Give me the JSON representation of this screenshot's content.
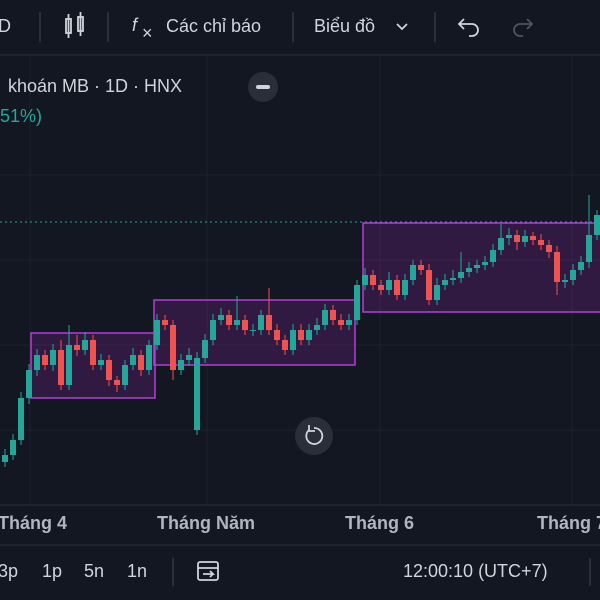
{
  "toolbar": {
    "interval": "D",
    "indicators": "Các chỉ báo",
    "chart_menu": "Biểu đồ"
  },
  "legend": {
    "title": "khoán MB · 1D · HNX",
    "change": "51%)"
  },
  "chart_data": {
    "type": "candlestick",
    "categories": [
      "Tháng 4",
      "Tháng Năm",
      "Tháng 6",
      "Tháng 7"
    ],
    "colors": {
      "up": "#26a69a",
      "down": "#ef5350"
    },
    "candles": [
      [
        38,
        51,
        33,
        45
      ],
      [
        45,
        66,
        40,
        60
      ],
      [
        60,
        108,
        55,
        102
      ],
      [
        102,
        136,
        96,
        130
      ],
      [
        130,
        151,
        124,
        145
      ],
      [
        145,
        150,
        130,
        135
      ],
      [
        135,
        156,
        129,
        150
      ],
      [
        150,
        160,
        110,
        115
      ],
      [
        115,
        175,
        110,
        155
      ],
      [
        155,
        165,
        144,
        150
      ],
      [
        150,
        168,
        145,
        160
      ],
      [
        160,
        165,
        130,
        135
      ],
      [
        135,
        146,
        130,
        140
      ],
      [
        140,
        145,
        114,
        120
      ],
      [
        120,
        124,
        108,
        115
      ],
      [
        115,
        140,
        110,
        135
      ],
      [
        135,
        152,
        130,
        145
      ],
      [
        145,
        150,
        124,
        130
      ],
      [
        130,
        160,
        125,
        155
      ],
      [
        155,
        186,
        150,
        180
      ],
      [
        180,
        185,
        170,
        175
      ],
      [
        175,
        180,
        120,
        130
      ],
      [
        130,
        146,
        125,
        140
      ],
      [
        140,
        152,
        135,
        145
      ],
      [
        70,
        148,
        65,
        142
      ],
      [
        142,
        166,
        137,
        160
      ],
      [
        160,
        186,
        155,
        180
      ],
      [
        180,
        192,
        175,
        185
      ],
      [
        185,
        190,
        170,
        175
      ],
      [
        175,
        204,
        170,
        180
      ],
      [
        180,
        185,
        165,
        170
      ],
      [
        170,
        176,
        164,
        170
      ],
      [
        170,
        190,
        165,
        185
      ],
      [
        185,
        212,
        165,
        170
      ],
      [
        170,
        176,
        155,
        160
      ],
      [
        160,
        165,
        145,
        150
      ],
      [
        150,
        176,
        145,
        170
      ],
      [
        170,
        176,
        155,
        160
      ],
      [
        160,
        176,
        155,
        170
      ],
      [
        170,
        182,
        165,
        175
      ],
      [
        175,
        196,
        170,
        190
      ],
      [
        190,
        195,
        175,
        180
      ],
      [
        180,
        186,
        170,
        175
      ],
      [
        175,
        186,
        170,
        180
      ],
      [
        180,
        220,
        175,
        215
      ],
      [
        215,
        232,
        210,
        225
      ],
      [
        225,
        230,
        210,
        215
      ],
      [
        215,
        220,
        205,
        210
      ],
      [
        210,
        228,
        205,
        220
      ],
      [
        220,
        225,
        200,
        205
      ],
      [
        205,
        226,
        200,
        220
      ],
      [
        220,
        240,
        215,
        235
      ],
      [
        235,
        240,
        225,
        230
      ],
      [
        230,
        236,
        195,
        200
      ],
      [
        200,
        222,
        195,
        215
      ],
      [
        215,
        226,
        210,
        220
      ],
      [
        220,
        230,
        215,
        222
      ],
      [
        222,
        248,
        217,
        228
      ],
      [
        228,
        238,
        223,
        232
      ],
      [
        232,
        240,
        227,
        235
      ],
      [
        235,
        244,
        230,
        238
      ],
      [
        238,
        256,
        233,
        250
      ],
      [
        250,
        276,
        245,
        262
      ],
      [
        262,
        272,
        255,
        265
      ],
      [
        265,
        270,
        250,
        258
      ],
      [
        258,
        270,
        253,
        264
      ],
      [
        264,
        268,
        255,
        260
      ],
      [
        260,
        266,
        250,
        255
      ],
      [
        255,
        260,
        242,
        248
      ],
      [
        248,
        254,
        205,
        218
      ],
      [
        218,
        226,
        212,
        220
      ],
      [
        220,
        236,
        215,
        230
      ],
      [
        230,
        244,
        225,
        238
      ],
      [
        238,
        305,
        232,
        265
      ],
      [
        265,
        290,
        260,
        285
      ]
    ]
  },
  "bottom_bar": {
    "ranges": [
      "3p",
      "1p",
      "5n",
      "1n"
    ],
    "clock": "12:00:10 (UTC+7)"
  }
}
